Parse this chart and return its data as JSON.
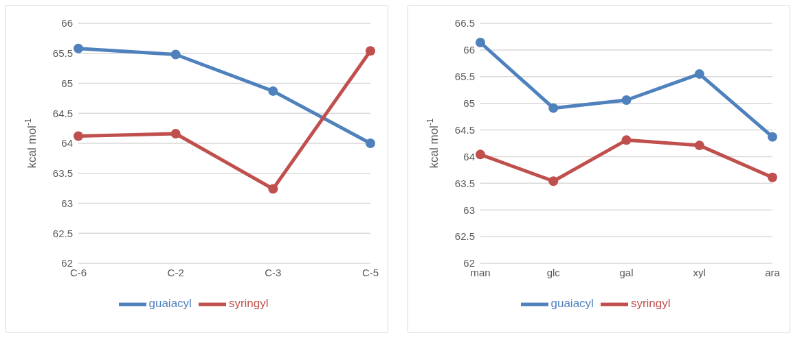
{
  "chart_data": [
    {
      "type": "line",
      "ylabel": "kcal mol$^{-1}$",
      "categories": [
        "C-6",
        "C-2",
        "C-3",
        "C-5"
      ],
      "series": [
        {
          "name": "guaiacyl",
          "color": "#4f81bd",
          "values": [
            65.58,
            65.48,
            64.87,
            64.0
          ]
        },
        {
          "name": "syringyl",
          "color": "#c0504d",
          "values": [
            64.12,
            64.16,
            63.24,
            65.54
          ]
        }
      ],
      "ylim": [
        62,
        66
      ],
      "yticks": [
        62,
        62.5,
        63,
        63.5,
        64,
        64.5,
        65,
        65.5,
        66
      ],
      "grid": "y",
      "legend": "bottom",
      "marker": "circle",
      "line_style": "solid"
    },
    {
      "type": "line",
      "ylabel": "kcal mol$^{-1}$",
      "categories": [
        "man",
        "glc",
        "gal",
        "xyl",
        "ara"
      ],
      "series": [
        {
          "name": "guaiacyl",
          "color": "#4f81bd",
          "values": [
            66.14,
            64.91,
            65.06,
            65.55,
            64.37
          ]
        },
        {
          "name": "syringyl",
          "color": "#c0504d",
          "values": [
            64.04,
            63.54,
            64.31,
            64.21,
            63.61
          ]
        }
      ],
      "ylim": [
        62,
        66.5
      ],
      "yticks": [
        62,
        62.5,
        63,
        63.5,
        64,
        64.5,
        65,
        65.5,
        66,
        66.5
      ],
      "grid": "y",
      "legend": "bottom",
      "marker": "circle",
      "line_style": "solid"
    }
  ]
}
